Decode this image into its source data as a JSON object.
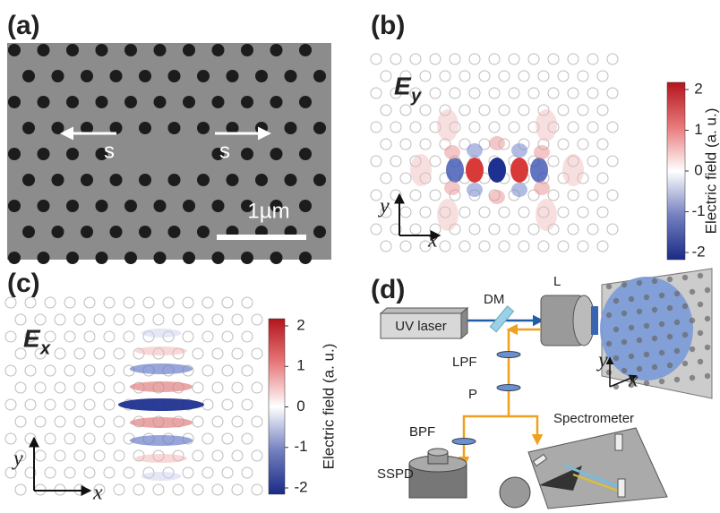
{
  "panels": [
    {
      "label": "(a)",
      "arrow_labels": [
        "s",
        "s"
      ],
      "scale_bar": "1µm"
    },
    {
      "label": "(b)",
      "field": "E",
      "component": "y",
      "axes": {
        "y": "y",
        "x": "x"
      },
      "colorbar": {
        "title": "Electric field (a. u.)",
        "ticks": [
          2,
          1,
          0,
          -1,
          -2
        ]
      }
    },
    {
      "label": "(c)",
      "field": "E",
      "component": "x",
      "axes": {
        "y": "y",
        "x": "x"
      },
      "colorbar": {
        "title": "Electric field (a. u.)",
        "ticks": [
          2,
          1,
          0,
          -1,
          -2
        ]
      }
    },
    {
      "label": "(d)",
      "components": {
        "laser": "UV laser",
        "dichroic": "DM",
        "lens": "L",
        "longpass": "LPF",
        "polarizer": "P",
        "bandpass": "BPF",
        "detector": "SSPD",
        "spectrometer": "Spectrometer"
      },
      "axes": {
        "y": "y",
        "x": "x"
      }
    }
  ]
}
